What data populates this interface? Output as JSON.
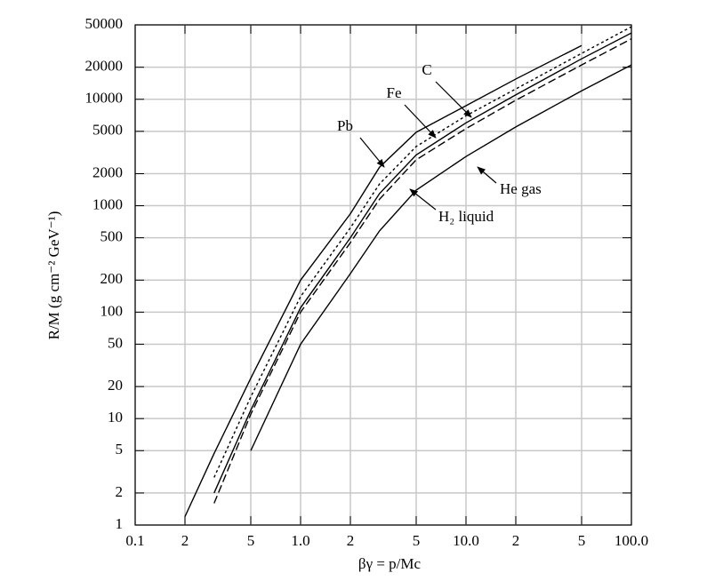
{
  "chart_data": {
    "type": "line",
    "x_label": "βγ = p/Mc",
    "y_label": "R/M (g cm⁻² GeV⁻¹)",
    "x": [
      0.2,
      0.3,
      0.5,
      1,
      2,
      3,
      5,
      10,
      20,
      50,
      100
    ],
    "series": [
      {
        "name": "Pb",
        "color": "#000000",
        "style": "solid",
        "values": [
          1.2,
          4.7,
          24,
          200,
          840,
          2300,
          4900,
          8700,
          15500,
          32000,
          null
        ]
      },
      {
        "name": "Fe",
        "color": "#000000",
        "style": "dotted",
        "values": [
          null,
          2.8,
          16,
          140,
          620,
          1600,
          3600,
          7000,
          12500,
          27000,
          48000
        ]
      },
      {
        "name": "C",
        "color": "#000000",
        "style": "solid",
        "values": [
          null,
          2.0,
          12,
          110,
          500,
          1300,
          3000,
          6000,
          11000,
          24000,
          42000
        ]
      },
      {
        "name": "He gas",
        "color": "#000000",
        "style": "dashed",
        "values": [
          null,
          1.6,
          11,
          100,
          450,
          1150,
          2700,
          5300,
          9800,
          21000,
          37000
        ]
      },
      {
        "name": "H₂ liquid",
        "color": "#000000",
        "style": "solid",
        "values": [
          null,
          null,
          5,
          50,
          230,
          580,
          1400,
          2900,
          5500,
          12000,
          21000
        ]
      }
    ],
    "xlim": [
      0.1,
      100
    ],
    "ylim": [
      1,
      50000
    ],
    "xlog": true,
    "ylog": true,
    "grid": true,
    "xticks": [
      0.1,
      {
        "value": 0.2,
        "label": "2"
      },
      {
        "value": 0.5,
        "label": "5"
      },
      {
        "value": 1,
        "label": "1.0"
      },
      {
        "value": 2,
        "label": "2"
      },
      {
        "value": 5,
        "label": "5"
      },
      {
        "value": 10,
        "label": "10.0"
      },
      {
        "value": 20,
        "label": "2"
      },
      {
        "value": 50,
        "label": "5"
      },
      {
        "value": 100,
        "label": "100.0"
      }
    ],
    "yticks": [
      1,
      2,
      5,
      10,
      20,
      50,
      100,
      200,
      500,
      1000,
      2000,
      5000,
      10000,
      20000,
      50000
    ]
  }
}
